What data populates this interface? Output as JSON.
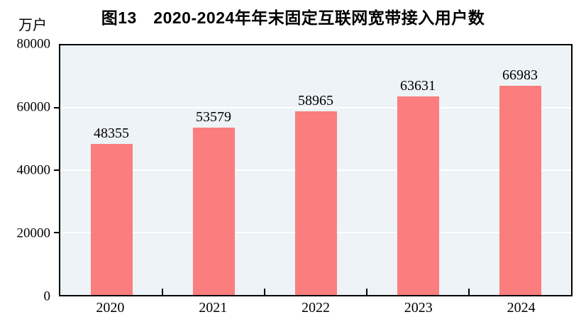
{
  "chart_data": {
    "type": "bar",
    "title": "图13　2020-2024年年末固定互联网宽带接入用户数",
    "unit_label": "万户",
    "categories": [
      "2020",
      "2021",
      "2022",
      "2023",
      "2024"
    ],
    "values": [
      48355,
      53579,
      58965,
      63631,
      66983
    ],
    "ylim": [
      0,
      80000
    ],
    "yticks": [
      0,
      20000,
      40000,
      60000,
      80000
    ],
    "grid": true,
    "legend": "none",
    "bar_color": "#FB7D7D",
    "plot_bg_color": "#EDF3F6",
    "gridline_color": "#FFFFFF",
    "axis_color": "#000000"
  }
}
